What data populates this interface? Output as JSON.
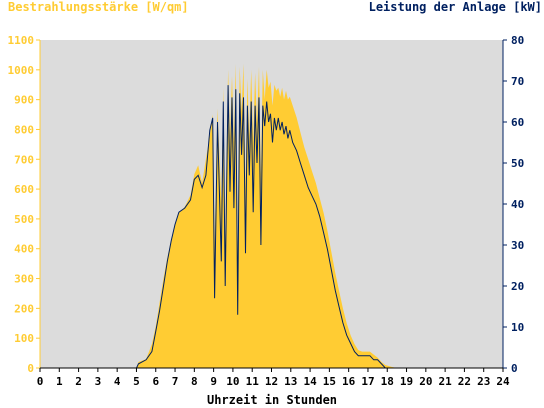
{
  "chart_data": {
    "type": "area",
    "title": "",
    "y_left_label": "Bestrahlungsstärke [W/qm]",
    "y_right_label": "Leistung der Anlage [kW]",
    "xlabel": "Uhrzeit in Stunden",
    "xlim": [
      0,
      24
    ],
    "x_ticks": [
      "0",
      "1",
      "2",
      "3",
      "4",
      "5",
      "6",
      "7",
      "8",
      "9",
      "10",
      "11",
      "12",
      "13",
      "14",
      "15",
      "16",
      "17",
      "18",
      "19",
      "20",
      "21",
      "22",
      "23",
      "24"
    ],
    "ylim_left": [
      0,
      1100
    ],
    "y_left_ticks": [
      "0",
      "100",
      "200",
      "300",
      "400",
      "500",
      "600",
      "700",
      "800",
      "900",
      "1000",
      "1100"
    ],
    "ylim_right": [
      0,
      80
    ],
    "y_right_ticks": [
      "0",
      "10",
      "20",
      "30",
      "40",
      "50",
      "60",
      "70",
      "80"
    ],
    "grid": false,
    "colors": {
      "plot_bg": "#dcdcdc",
      "irradiance": "#ffcc33",
      "power": "#002060",
      "left_axis_text": "#ffcc33",
      "right_axis_text": "#002060",
      "x_axis_text": "#000000"
    },
    "series": [
      {
        "name": "Bestrahlungsstärke [W/qm]",
        "axis": "left",
        "x": [
          0,
          5,
          5.1,
          5.5,
          5.8,
          6.0,
          6.2,
          6.4,
          6.6,
          6.8,
          7.0,
          7.2,
          7.5,
          7.8,
          8.0,
          8.2,
          8.4,
          8.6,
          8.8,
          8.95,
          9.05,
          9.2,
          9.4,
          9.5,
          9.6,
          9.75,
          9.85,
          9.95,
          10.05,
          10.15,
          10.25,
          10.35,
          10.45,
          10.55,
          10.65,
          10.75,
          10.85,
          10.95,
          11.05,
          11.15,
          11.25,
          11.35,
          11.45,
          11.55,
          11.65,
          11.75,
          11.85,
          11.95,
          12.05,
          12.15,
          12.25,
          12.35,
          12.45,
          12.55,
          12.65,
          12.75,
          12.85,
          12.95,
          13.1,
          13.3,
          13.5,
          13.7,
          13.9,
          14.1,
          14.3,
          14.5,
          14.7,
          14.9,
          15.1,
          15.3,
          15.5,
          15.7,
          15.9,
          16.1,
          16.3,
          16.5,
          16.7,
          16.9,
          17.1,
          17.3,
          17.5,
          17.7,
          17.9,
          18.2,
          18.5,
          18.8,
          19.1,
          19.4,
          19.7,
          20.0,
          20.3,
          20.5,
          24
        ],
        "values": [
          0,
          0,
          20,
          30,
          80,
          140,
          220,
          300,
          370,
          430,
          480,
          520,
          540,
          580,
          650,
          680,
          620,
          700,
          780,
          850,
          420,
          870,
          560,
          940,
          420,
          1000,
          780,
          980,
          760,
          1020,
          380,
          1010,
          860,
          1020,
          600,
          970,
          780,
          1000,
          760,
          990,
          820,
          1010,
          650,
          1000,
          900,
          1000,
          940,
          960,
          880,
          950,
          930,
          940,
          910,
          940,
          900,
          930,
          900,
          910,
          880,
          840,
          790,
          740,
          700,
          660,
          620,
          570,
          520,
          460,
          390,
          320,
          260,
          200,
          150,
          110,
          80,
          60,
          55,
          55,
          55,
          45,
          35,
          20,
          10,
          4,
          0,
          0,
          0,
          0,
          0,
          0,
          0,
          0,
          0
        ]
      },
      {
        "name": "Leistung der Anlage [kW]",
        "axis": "right",
        "x": [
          0,
          5,
          5.1,
          5.5,
          5.8,
          6.0,
          6.2,
          6.4,
          6.6,
          6.8,
          7.0,
          7.2,
          7.5,
          7.8,
          8.0,
          8.2,
          8.4,
          8.6,
          8.8,
          8.95,
          9.05,
          9.2,
          9.4,
          9.5,
          9.6,
          9.75,
          9.85,
          9.95,
          10.05,
          10.15,
          10.25,
          10.35,
          10.45,
          10.55,
          10.65,
          10.75,
          10.85,
          10.95,
          11.05,
          11.15,
          11.25,
          11.35,
          11.45,
          11.55,
          11.65,
          11.75,
          11.85,
          11.95,
          12.05,
          12.15,
          12.25,
          12.35,
          12.45,
          12.55,
          12.65,
          12.75,
          12.85,
          12.95,
          13.1,
          13.3,
          13.5,
          13.7,
          13.9,
          14.1,
          14.3,
          14.5,
          14.7,
          14.9,
          15.1,
          15.3,
          15.5,
          15.7,
          15.9,
          16.1,
          16.3,
          16.5,
          16.7,
          16.9,
          17.1,
          17.3,
          17.5,
          17.7,
          17.9,
          18.2,
          18.5,
          18.8,
          19.1,
          19.4,
          19.7,
          20.0,
          20.3,
          20.5,
          24
        ],
        "values": [
          0,
          0,
          1,
          2,
          4,
          9,
          14,
          20,
          26,
          31,
          35,
          38,
          39,
          41,
          46,
          47,
          44,
          47,
          58,
          61,
          17,
          60,
          26,
          65,
          20,
          69,
          43,
          66,
          39,
          68,
          13,
          67,
          52,
          66,
          28,
          64,
          47,
          65,
          38,
          64,
          50,
          66,
          30,
          64,
          59,
          65,
          60,
          62,
          55,
          61,
          58,
          61,
          58,
          60,
          57,
          59,
          56,
          58,
          55,
          53,
          50,
          47,
          44,
          42,
          40,
          37,
          33,
          29,
          24,
          19,
          15,
          11,
          8,
          6,
          4,
          3,
          3,
          3,
          3,
          2,
          2,
          1,
          0,
          0,
          0,
          0,
          0,
          0,
          0,
          0,
          0,
          0,
          0
        ]
      }
    ]
  }
}
